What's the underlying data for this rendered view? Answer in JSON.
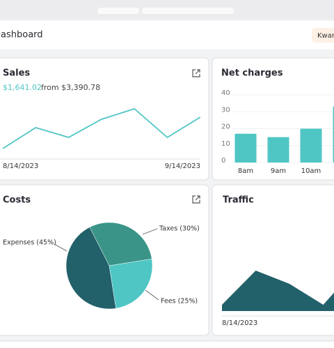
{
  "header": {
    "title": "Dashboard",
    "user": "Kwam"
  },
  "cards": [
    {
      "title": "Sales",
      "amount": "$1,641.02",
      "comparison": "from $3,390.78",
      "chart": {
        "type": "line",
        "color": "#4fc6c4",
        "values": [
          15,
          45,
          31,
          57,
          72,
          31,
          60
        ],
        "x_labels": [
          "8/14/2023",
          "9/14/2023"
        ]
      }
    },
    {
      "title": "Net charges",
      "chart": {
        "type": "bar",
        "color": "#4fc6c4",
        "categories": [
          "8am",
          "9am",
          "10am",
          null
        ],
        "values": [
          17,
          15,
          20,
          33
        ],
        "ylim": [
          0,
          40
        ],
        "yticks": [
          0,
          10,
          20,
          30,
          40
        ],
        "grid": true
      }
    },
    {
      "title": "Costs",
      "chart": {
        "type": "pie",
        "categories": [
          "Expenses (45%)",
          "Taxes (30%)",
          "Fees (25%)"
        ],
        "values": [
          45,
          30,
          25
        ],
        "colors": [
          "#22606a",
          "#3a9488",
          "#4fc6c4"
        ]
      }
    },
    {
      "title": "Traffic",
      "chart": {
        "type": "area",
        "color": "#22606a",
        "values": [
          9,
          58,
          39,
          9,
          63
        ],
        "x_labels": [
          "8/14/2023"
        ]
      }
    }
  ]
}
